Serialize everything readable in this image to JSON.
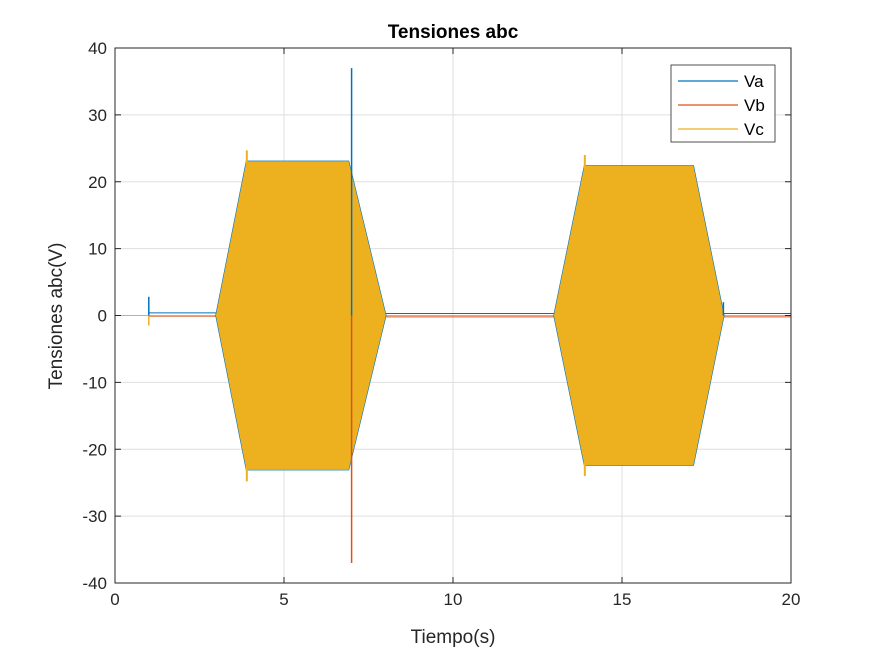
{
  "chart_data": {
    "type": "line",
    "title": "Tensiones abc",
    "xlabel": "Tiempo(s)",
    "ylabel": "Tensiones abc(V)",
    "xlim": [
      0,
      20
    ],
    "ylim": [
      -40,
      40
    ],
    "xticks": [
      0,
      5,
      10,
      15,
      20
    ],
    "xtick_labels": [
      "0",
      "5",
      "10",
      "15",
      "20"
    ],
    "yticks": [
      -40,
      -30,
      -20,
      -10,
      0,
      10,
      20,
      30,
      40
    ],
    "ytick_labels": [
      "-40",
      "-30",
      "-20",
      "-10",
      "0",
      "10",
      "20",
      "30",
      "40"
    ],
    "grid": true,
    "legend_position": "top-right",
    "series": [
      {
        "name": "Va",
        "color": "#0072BD"
      },
      {
        "name": "Vb",
        "color": "#D95319"
      },
      {
        "name": "Vc",
        "color": "#EDB120"
      }
    ],
    "oscillation_envelope": {
      "bursts": [
        {
          "t": [
            3.0,
            3.9,
            6.9,
            8.0
          ],
          "amplitude": [
            0,
            23,
            23,
            0
          ]
        },
        {
          "t": [
            13.0,
            13.9,
            17.1,
            18.0
          ],
          "amplitude": [
            0,
            22.3,
            22.3,
            0
          ]
        }
      ],
      "overshoot_peaks": [
        {
          "t": 3.9,
          "value": 24.7
        },
        {
          "t": 3.9,
          "value": -24.8
        },
        {
          "t": 13.9,
          "value": 24.0
        },
        {
          "t": 13.9,
          "value": -24.0
        }
      ]
    },
    "spikes": [
      {
        "series": "Va",
        "t": 7.0,
        "value": 37.0
      },
      {
        "series": "Vb",
        "t": 7.0,
        "value": -37.0
      },
      {
        "series": "Va",
        "t": 1.0,
        "value": 2.8
      },
      {
        "series": "Vc",
        "t": 1.0,
        "value": -1.5
      },
      {
        "series": "Va",
        "t": 18.0,
        "value": 2.0
      }
    ],
    "dc_levels": [
      {
        "series": "Va",
        "segments": [
          {
            "t": [
              1.0,
              3.0
            ],
            "value": 0.4
          },
          {
            "t": [
              8.0,
              13.0
            ],
            "value": 0.3
          },
          {
            "t": [
              18.0,
              20.0
            ],
            "value": 0.3
          }
        ]
      },
      {
        "series": "Vb",
        "segments": [
          {
            "t": [
              1.0,
              3.0
            ],
            "value": -0.1
          },
          {
            "t": [
              8.0,
              13.0
            ],
            "value": -0.2
          },
          {
            "t": [
              18.0,
              20.0
            ],
            "value": -0.2
          }
        ]
      },
      {
        "series": "Vc",
        "segments": [
          {
            "t": [
              0.0,
              20.0
            ],
            "value": 0.0
          }
        ]
      }
    ]
  }
}
